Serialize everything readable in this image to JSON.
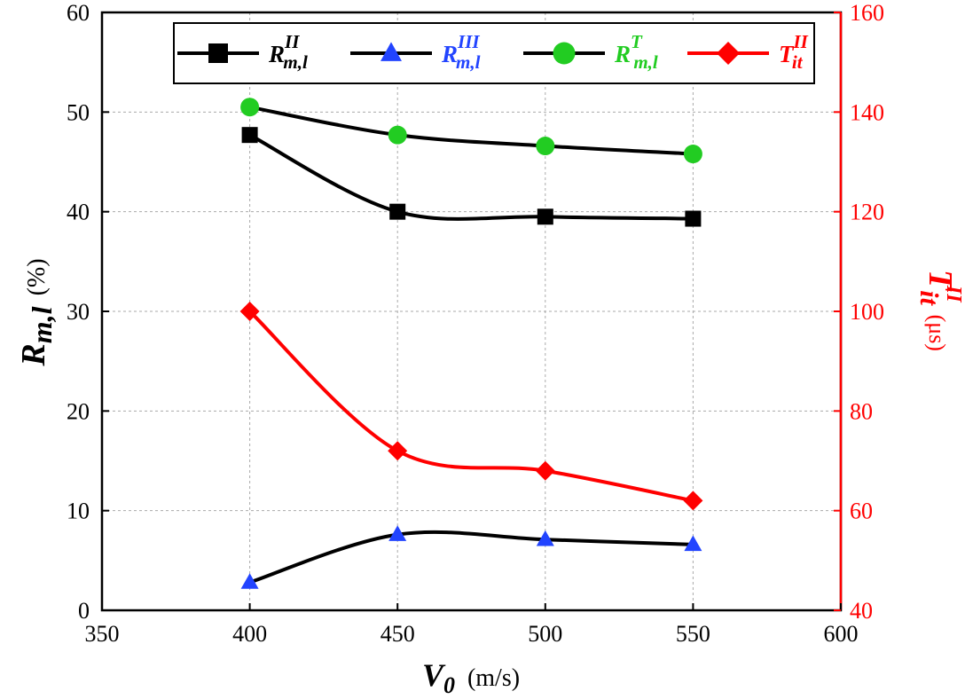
{
  "chart_data": {
    "type": "line",
    "x": [
      400,
      450,
      500,
      550
    ],
    "xlim": [
      350,
      600
    ],
    "xticks": [
      350,
      400,
      450,
      500,
      550,
      600
    ],
    "xlabel": {
      "symbol": "V",
      "sub": "0",
      "unit": "(m/s)"
    },
    "y_left": {
      "lim": [
        0,
        60
      ],
      "ticks": [
        0,
        10,
        20,
        30,
        40,
        50,
        60
      ],
      "label": {
        "symbol": "R",
        "sub": "m,l",
        "unit": "(%)"
      }
    },
    "y_right": {
      "lim": [
        40,
        160
      ],
      "ticks": [
        40,
        60,
        80,
        100,
        120,
        140,
        160
      ],
      "label": {
        "symbol": "T",
        "sub": "it",
        "sup": "II",
        "unit": "(μs)"
      },
      "color": "#ff0000"
    },
    "grid": true,
    "legend_position": "top",
    "series": [
      {
        "name": "R_m,l^II",
        "label": {
          "symbol": "R",
          "sub": "m,l",
          "sup": "II"
        },
        "marker": "square",
        "marker_color": "#000000",
        "line_color": "#000000",
        "text_color": "#000000",
        "axis": "left",
        "values": [
          47.7,
          40.0,
          39.5,
          39.3
        ]
      },
      {
        "name": "R_m,l^III",
        "label": {
          "symbol": "R",
          "sub": "m,l",
          "sup": "III"
        },
        "marker": "triangle",
        "marker_color": "#2244ff",
        "line_color": "#000000",
        "text_color": "#2244ff",
        "axis": "left",
        "values": [
          2.8,
          7.6,
          7.1,
          6.6
        ]
      },
      {
        "name": "R_m,l^T",
        "label": {
          "symbol": "R",
          "sub": "m,l",
          "sup": "T"
        },
        "marker": "circle",
        "marker_color": "#22cc22",
        "line_color": "#000000",
        "text_color": "#22cc22",
        "axis": "left",
        "values": [
          50.5,
          47.7,
          46.6,
          45.8
        ]
      },
      {
        "name": "T_it^II",
        "label": {
          "symbol": "T",
          "sub": "it",
          "sup": "II"
        },
        "marker": "diamond",
        "marker_color": "#ff0000",
        "line_color": "#ff0000",
        "text_color": "#ff0000",
        "axis": "right",
        "values": [
          100,
          72,
          68,
          62
        ]
      }
    ]
  }
}
